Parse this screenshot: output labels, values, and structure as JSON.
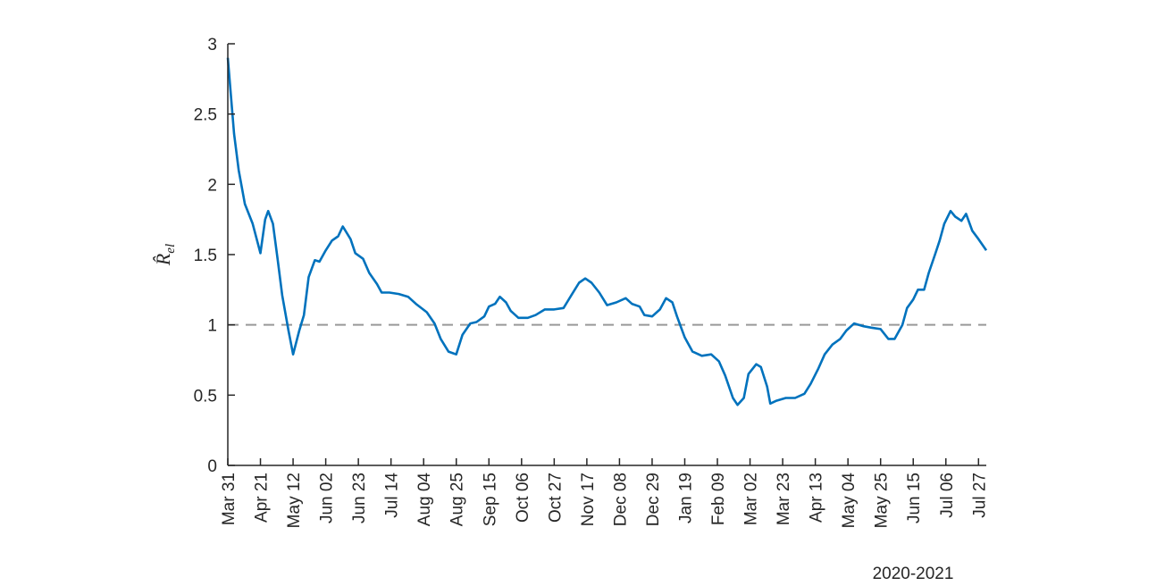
{
  "chart_data": {
    "type": "line",
    "xlabel": "2020-2021",
    "ylabel": {
      "main": "R̂",
      "sub": "el"
    },
    "xlim": [
      0,
      488
    ],
    "ylim": [
      0,
      3
    ],
    "yticks": [
      0,
      0.5,
      1,
      1.5,
      2,
      2.5,
      3
    ],
    "xticks": [
      {
        "value": 0,
        "label": "Mar 31"
      },
      {
        "value": 21,
        "label": "Apr 21"
      },
      {
        "value": 42,
        "label": "May 12"
      },
      {
        "value": 63,
        "label": "Jun 02"
      },
      {
        "value": 84,
        "label": "Jun 23"
      },
      {
        "value": 105,
        "label": "Jul 14"
      },
      {
        "value": 126,
        "label": "Aug 04"
      },
      {
        "value": 147,
        "label": "Aug 25"
      },
      {
        "value": 168,
        "label": "Sep 15"
      },
      {
        "value": 189,
        "label": "Oct 06"
      },
      {
        "value": 210,
        "label": "Oct 27"
      },
      {
        "value": 231,
        "label": "Nov 17"
      },
      {
        "value": 252,
        "label": "Dec 08"
      },
      {
        "value": 273,
        "label": "Dec 29"
      },
      {
        "value": 294,
        "label": "Jan 19"
      },
      {
        "value": 315,
        "label": "Feb 09"
      },
      {
        "value": 336,
        "label": "Mar 02"
      },
      {
        "value": 357,
        "label": "Mar 23"
      },
      {
        "value": 378,
        "label": "Apr 13"
      },
      {
        "value": 399,
        "label": "May 04"
      },
      {
        "value": 420,
        "label": "May 25"
      },
      {
        "value": 441,
        "label": "Jun 15"
      },
      {
        "value": 462,
        "label": "Jul 06"
      },
      {
        "value": 483,
        "label": "Jul 27"
      }
    ],
    "reference_line": {
      "value": 1,
      "color": "#999999",
      "dashed": true
    },
    "series": [
      {
        "color": "#0072bd",
        "x": [
          0,
          4,
          7,
          11,
          16,
          21,
          24,
          26,
          29,
          32,
          35,
          39,
          42,
          46,
          49,
          52,
          56,
          59,
          63,
          67,
          71,
          74,
          79,
          82,
          87,
          91,
          96,
          99,
          104,
          110,
          116,
          121,
          128,
          133,
          137,
          142,
          147,
          151,
          156,
          160,
          165,
          168,
          172,
          175,
          179,
          182,
          187,
          193,
          198,
          204,
          210,
          216,
          221,
          226,
          230,
          234,
          239,
          244,
          250,
          256,
          260,
          265,
          268,
          273,
          278,
          282,
          286,
          289,
          294,
          299,
          305,
          311,
          316,
          320,
          325,
          328,
          332,
          335,
          340,
          343,
          347,
          349,
          353,
          359,
          365,
          371,
          375,
          380,
          384,
          389,
          394,
          398,
          403,
          409,
          414,
          420,
          425,
          429,
          434,
          437,
          441,
          444,
          448,
          451,
          455,
          458,
          461,
          465,
          468,
          472,
          475,
          479,
          483,
          488
        ],
        "values": [
          2.9,
          2.36,
          2.1,
          1.86,
          1.72,
          1.51,
          1.75,
          1.81,
          1.72,
          1.47,
          1.21,
          0.96,
          0.79,
          0.96,
          1.07,
          1.34,
          1.46,
          1.45,
          1.53,
          1.6,
          1.63,
          1.7,
          1.61,
          1.51,
          1.47,
          1.37,
          1.29,
          1.23,
          1.23,
          1.22,
          1.2,
          1.15,
          1.09,
          1.01,
          0.9,
          0.81,
          0.79,
          0.93,
          1.01,
          1.02,
          1.06,
          1.13,
          1.15,
          1.2,
          1.16,
          1.1,
          1.05,
          1.05,
          1.07,
          1.11,
          1.11,
          1.12,
          1.21,
          1.3,
          1.33,
          1.3,
          1.23,
          1.14,
          1.16,
          1.19,
          1.15,
          1.13,
          1.07,
          1.06,
          1.11,
          1.19,
          1.16,
          1.06,
          0.91,
          0.81,
          0.78,
          0.79,
          0.74,
          0.64,
          0.48,
          0.43,
          0.48,
          0.65,
          0.72,
          0.7,
          0.56,
          0.44,
          0.46,
          0.48,
          0.48,
          0.51,
          0.58,
          0.69,
          0.79,
          0.86,
          0.9,
          0.96,
          1.01,
          0.99,
          0.98,
          0.97,
          0.9,
          0.9,
          1.0,
          1.12,
          1.18,
          1.25,
          1.25,
          1.37,
          1.5,
          1.6,
          1.72,
          1.81,
          1.77,
          1.74,
          1.79,
          1.67,
          1.61,
          1.53
        ]
      }
    ]
  }
}
